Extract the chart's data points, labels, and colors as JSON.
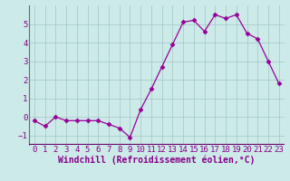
{
  "x": [
    0,
    1,
    2,
    3,
    4,
    5,
    6,
    7,
    8,
    9,
    10,
    11,
    12,
    13,
    14,
    15,
    16,
    17,
    18,
    19,
    20,
    21,
    22,
    23
  ],
  "y": [
    -0.2,
    -0.5,
    0.0,
    -0.2,
    -0.2,
    -0.2,
    -0.2,
    -0.4,
    -0.6,
    -1.1,
    0.4,
    1.5,
    2.7,
    3.9,
    5.1,
    5.2,
    4.6,
    5.5,
    5.3,
    5.5,
    4.5,
    4.2,
    3.0,
    1.8
  ],
  "line_color": "#990099",
  "marker": "D",
  "marker_size": 2.5,
  "bg_color": "#cceae8",
  "plot_bg_color": "#cceae8",
  "grid_color": "#aacccc",
  "xlabel": "Windchill (Refroidissement éolien,°C)",
  "ylabel": "",
  "title": "",
  "xlim": [
    -0.5,
    23.5
  ],
  "ylim": [
    -1.5,
    6.0
  ],
  "yticks": [
    -1,
    0,
    1,
    2,
    3,
    4,
    5
  ],
  "xticks": [
    0,
    1,
    2,
    3,
    4,
    5,
    6,
    7,
    8,
    9,
    10,
    11,
    12,
    13,
    14,
    15,
    16,
    17,
    18,
    19,
    20,
    21,
    22,
    23
  ],
  "font_color": "#880088",
  "tick_fontsize": 6.5,
  "label_fontsize": 7,
  "bottom_bar_color": "#660066",
  "bottom_bar_height": 0.1
}
